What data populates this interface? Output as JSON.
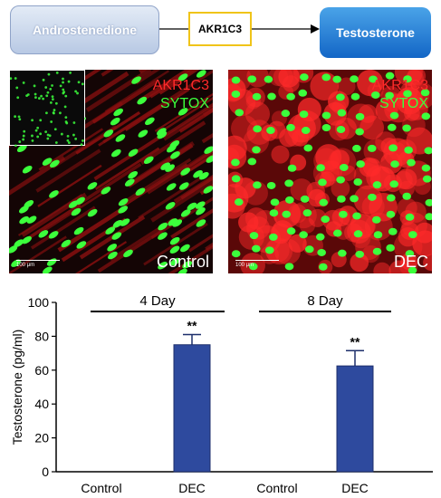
{
  "pathway": {
    "substrate": "Androstenedione",
    "enzyme": "AKR1C3",
    "product": "Testosterone"
  },
  "panels": {
    "stain_red": "AKR1C3",
    "stain_green": "SYTOX",
    "scale_bar": "100 μm",
    "control_label": "Control",
    "dec_label": "DEC",
    "colors": {
      "stain_red": "#ff2a2a",
      "stain_green": "#3cff3c"
    }
  },
  "chart_data": {
    "type": "bar",
    "ylabel": "Testosterone (pg/ml)",
    "ylim": [
      0,
      100
    ],
    "yticks": [
      0,
      20,
      40,
      60,
      80,
      100
    ],
    "categories": [
      "Control",
      "DEC",
      "Control",
      "DEC"
    ],
    "values": [
      0,
      75,
      0,
      62.5
    ],
    "errors": [
      0,
      6,
      0,
      9
    ],
    "significance": [
      "",
      "**",
      "",
      "**"
    ],
    "groups": [
      {
        "label": "4 Day",
        "categories": [
          0,
          1
        ]
      },
      {
        "label": "8  Day",
        "categories": [
          2,
          3
        ]
      }
    ],
    "bar_color": "#2e4a9e"
  }
}
